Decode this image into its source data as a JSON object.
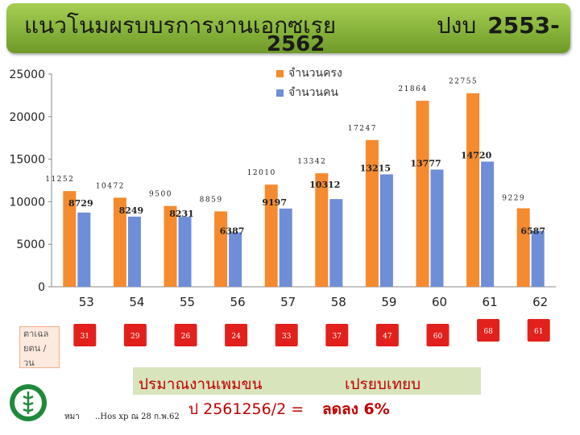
{
  "slide": {
    "title_line1": "แนวโนมผรบบรการงานเอกซเรย",
    "title_line2": "2562",
    "title_right_label": "ปงบ",
    "title_right_year": "2553-",
    "side_label": "ตาเฉล ยตน / วน",
    "footer_left": "หมา",
    "footer_source": "..Hos xp ณ 28 ก.พ.62",
    "note_line1_a": "ปรมาณงานเพมขน",
    "note_line1_b": "เปรยบเทยบ",
    "note_line2_a": "ป 2561256/2 =",
    "note_line2_b": "ลดลง 6%",
    "logo_name": "ministry-of-public-health-logo"
  },
  "chart_data": {
    "type": "bar",
    "categories": [
      "53",
      "54",
      "55",
      "56",
      "57",
      "58",
      "59",
      "60",
      "61",
      "62"
    ],
    "series": [
      {
        "name": "จำนวนครง",
        "color": "#f58a2e",
        "values": [
          11252,
          10472,
          9500,
          8859,
          12010,
          13342,
          17247,
          21864,
          22755,
          9229
        ]
      },
      {
        "name": "จำนวนคน",
        "color": "#6f8ed8",
        "values": [
          8729,
          8249,
          8231,
          6387,
          9197,
          10312,
          13215,
          13777,
          14720,
          6587
        ]
      }
    ],
    "value_labels": {
      "orange": [
        "11252",
        "10472",
        "9500",
        "8859",
        "12010",
        "13342",
        "17247",
        "21864",
        "22755",
        "9229"
      ],
      "blue": [
        "8729",
        "8249",
        "8231",
        "6387",
        "9197",
        "10312",
        "13215",
        "13777",
        "14720",
        "6587"
      ]
    },
    "daily_average": {
      "values": [
        "31",
        "29",
        "26",
        "24",
        "33",
        "37",
        "47",
        "60",
        "68",
        "61"
      ],
      "color": "#e2211c"
    },
    "yticks": [
      "0",
      "5000",
      "10000",
      "15000",
      "20000",
      "25000"
    ],
    "ylim": [
      0,
      25000
    ],
    "legend_position": "top-center",
    "grid": false
  }
}
